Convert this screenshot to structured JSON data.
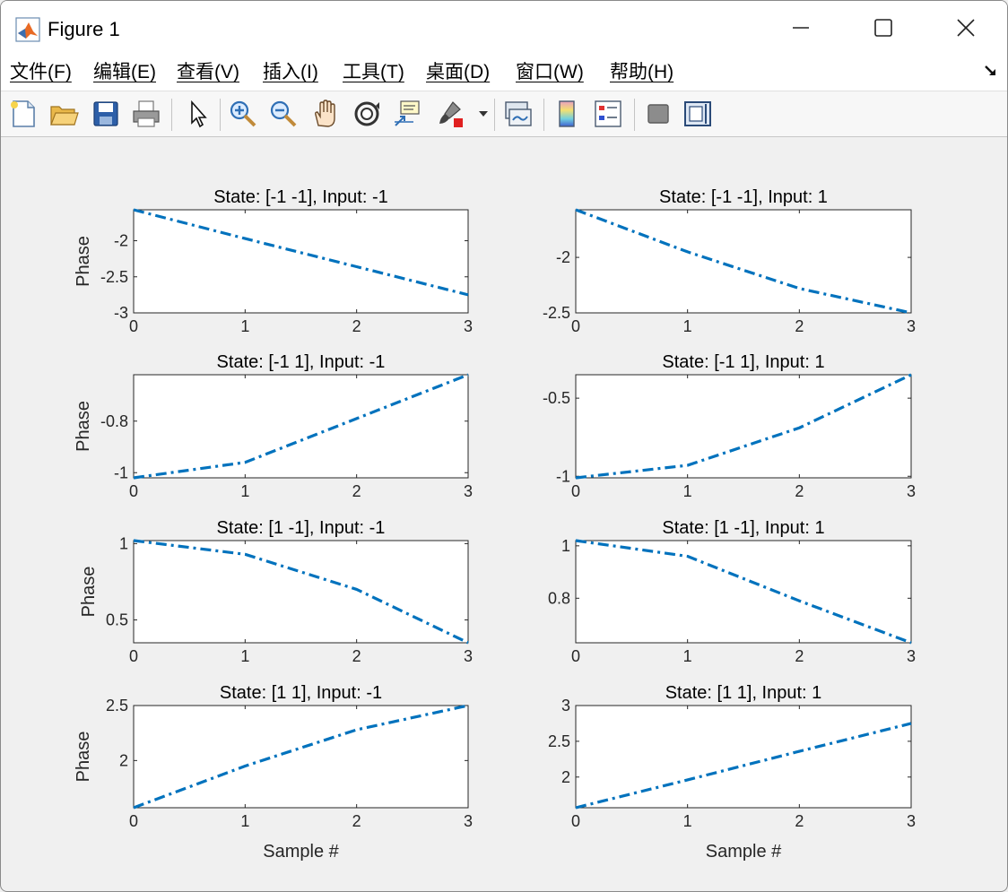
{
  "window": {
    "title": "Figure 1",
    "controls": [
      "minimize",
      "maximize",
      "close"
    ]
  },
  "menu": {
    "items": [
      "文件(F)",
      "编辑(E)",
      "查看(V)",
      "插入(I)",
      "工具(T)",
      "桌面(D)",
      "窗口(W)",
      "帮助(H)"
    ]
  },
  "toolbar": {
    "icons": [
      "new-figure-icon",
      "open-folder-icon",
      "save-icon",
      "print-icon",
      "pointer-icon",
      "zoom-in-icon",
      "zoom-out-icon",
      "pan-hand-icon",
      "rotate-3d-icon",
      "data-cursor-icon",
      "brush-icon",
      "brush-dropdown-icon",
      "link-plot-icon",
      "colorbar-icon",
      "legend-icon",
      "hide-plot-tools-icon",
      "show-plot-tools-icon"
    ]
  },
  "chart_data": [
    {
      "type": "line",
      "title": "State: [-1 -1], Input: -1",
      "ylabel": "Phase",
      "xlabel": "",
      "x": [
        0,
        1,
        2,
        3
      ],
      "y": [
        -1.571,
        -1.97,
        -2.36,
        -2.75
      ],
      "xlim": [
        0,
        3
      ],
      "ylim": [
        -3,
        -1.571
      ],
      "xticks": [
        "0",
        "1",
        "2",
        "3"
      ],
      "yticks": [
        -3,
        -2.5,
        -2
      ],
      "ytick_labels": [
        "-3",
        "-2.5",
        "-2"
      ],
      "line_style": "dash-dot",
      "color": "#0072bd"
    },
    {
      "type": "line",
      "title": "State: [-1 -1], Input: 1",
      "ylabel": "",
      "xlabel": "",
      "x": [
        0,
        1,
        2,
        3
      ],
      "y": [
        -1.571,
        -1.95,
        -2.28,
        -2.5
      ],
      "xlim": [
        0,
        3
      ],
      "ylim": [
        -2.5,
        -1.571
      ],
      "xticks": [
        "0",
        "1",
        "2",
        "3"
      ],
      "yticks": [
        -2.5,
        -2
      ],
      "ytick_labels": [
        "-2.5",
        "-2"
      ],
      "line_style": "dash-dot",
      "color": "#0072bd"
    },
    {
      "type": "line",
      "title": "State: [-1  1], Input: -1",
      "ylabel": "Phase",
      "xlabel": "",
      "x": [
        0,
        1,
        2,
        3
      ],
      "y": [
        -1.02,
        -0.96,
        -0.79,
        -0.62
      ],
      "xlim": [
        0,
        3
      ],
      "ylim": [
        -1.02,
        -0.62
      ],
      "xticks": [
        "0",
        "1",
        "2",
        "3"
      ],
      "yticks": [
        -1,
        -0.8
      ],
      "ytick_labels": [
        "-1",
        "-0.8"
      ],
      "line_style": "dash-dot",
      "color": "#0072bd"
    },
    {
      "type": "line",
      "title": "State: [-1  1], Input: 1",
      "ylabel": "",
      "xlabel": "",
      "x": [
        0,
        1,
        2,
        3
      ],
      "y": [
        -1.01,
        -0.93,
        -0.69,
        -0.35
      ],
      "xlim": [
        0,
        3
      ],
      "ylim": [
        -1.01,
        -0.35
      ],
      "xticks": [
        "0",
        "1",
        "2",
        "3"
      ],
      "yticks": [
        -1,
        -0.5
      ],
      "ytick_labels": [
        "-1",
        "-0.5"
      ],
      "line_style": "dash-dot",
      "color": "#0072bd"
    },
    {
      "type": "line",
      "title": "State: [1 -1], Input: -1",
      "ylabel": "Phase",
      "xlabel": "",
      "x": [
        0,
        1,
        2,
        3
      ],
      "y": [
        1.02,
        0.93,
        0.7,
        0.35
      ],
      "xlim": [
        0,
        3
      ],
      "ylim": [
        0.35,
        1.02
      ],
      "xticks": [
        "0",
        "1",
        "2",
        "3"
      ],
      "yticks": [
        0.5,
        1
      ],
      "ytick_labels": [
        "0.5",
        "1"
      ],
      "line_style": "dash-dot",
      "color": "#0072bd"
    },
    {
      "type": "line",
      "title": "State: [1 -1], Input: 1",
      "ylabel": "",
      "xlabel": "",
      "x": [
        0,
        1,
        2,
        3
      ],
      "y": [
        1.02,
        0.96,
        0.79,
        0.63
      ],
      "xlim": [
        0,
        3
      ],
      "ylim": [
        0.63,
        1.02
      ],
      "xticks": [
        "0",
        "1",
        "2",
        "3"
      ],
      "yticks": [
        0.8,
        1
      ],
      "ytick_labels": [
        "0.8",
        "1"
      ],
      "line_style": "dash-dot",
      "color": "#0072bd"
    },
    {
      "type": "line",
      "title": "State: [1  1], Input: -1",
      "ylabel": "Phase",
      "xlabel": "Sample #",
      "x": [
        0,
        1,
        2,
        3
      ],
      "y": [
        1.571,
        1.95,
        2.28,
        2.5
      ],
      "xlim": [
        0,
        3
      ],
      "ylim": [
        1.571,
        2.5
      ],
      "xticks": [
        "0",
        "1",
        "2",
        "3"
      ],
      "yticks": [
        2,
        2.5
      ],
      "ytick_labels": [
        "2",
        "2.5"
      ],
      "line_style": "dash-dot",
      "color": "#0072bd"
    },
    {
      "type": "line",
      "title": "State: [1  1], Input: 1",
      "ylabel": "",
      "xlabel": "Sample #",
      "x": [
        0,
        1,
        2,
        3
      ],
      "y": [
        1.571,
        1.96,
        2.36,
        2.75
      ],
      "xlim": [
        0,
        3
      ],
      "ylim": [
        1.571,
        3
      ],
      "xticks": [
        "0",
        "1",
        "2",
        "3"
      ],
      "yticks": [
        2,
        2.5,
        3
      ],
      "ytick_labels": [
        "2",
        "2.5",
        "3"
      ],
      "line_style": "dash-dot",
      "color": "#0072bd"
    }
  ]
}
